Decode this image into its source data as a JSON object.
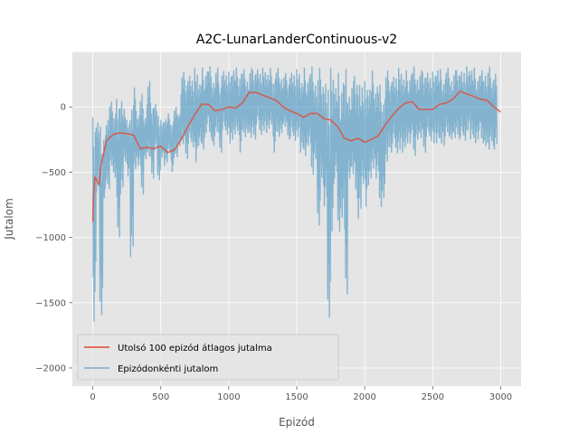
{
  "chart_data": {
    "type": "line",
    "title": "A2C-LunarLanderContinuous-v2",
    "xlabel": "Epizód",
    "ylabel": "Jutalom",
    "xlim": [
      -150,
      3150
    ],
    "ylim": [
      -2140,
      420
    ],
    "x_ticks": [
      0,
      500,
      1000,
      1500,
      2000,
      2500,
      3000
    ],
    "y_ticks": [
      -2000,
      -1500,
      -1000,
      -500,
      0
    ],
    "y_tick_labels": [
      "−2000",
      "−1500",
      "−1000",
      "−500",
      "0"
    ],
    "grid": true,
    "legend_position": "lower-left",
    "series": [
      {
        "name": "Utolsó 100 epizód átlagos jutalma",
        "color": "#E24A33",
        "x": [
          0,
          5,
          15,
          30,
          45,
          60,
          100,
          150,
          200,
          250,
          300,
          350,
          400,
          450,
          500,
          550,
          600,
          650,
          700,
          750,
          800,
          850,
          900,
          950,
          1000,
          1050,
          1100,
          1150,
          1200,
          1250,
          1300,
          1350,
          1400,
          1450,
          1500,
          1550,
          1600,
          1650,
          1700,
          1750,
          1800,
          1850,
          1900,
          1950,
          2000,
          2050,
          2100,
          2150,
          2200,
          2250,
          2300,
          2350,
          2400,
          2450,
          2500,
          2550,
          2600,
          2650,
          2700,
          2750,
          2800,
          2850,
          2900,
          2950,
          3000
        ],
        "values": [
          -880,
          -700,
          -540,
          -560,
          -600,
          -450,
          -260,
          -210,
          -200,
          -205,
          -215,
          -320,
          -310,
          -320,
          -300,
          -350,
          -330,
          -250,
          -150,
          -60,
          20,
          20,
          -30,
          -20,
          0,
          -10,
          30,
          110,
          110,
          90,
          70,
          50,
          0,
          -30,
          -50,
          -80,
          -50,
          -50,
          -90,
          -100,
          -150,
          -240,
          -260,
          -240,
          -270,
          -250,
          -220,
          -140,
          -70,
          -10,
          30,
          40,
          -20,
          -20,
          -20,
          20,
          30,
          60,
          120,
          100,
          80,
          60,
          50,
          0,
          -40
        ]
      },
      {
        "name": "Epizódonkénti jutalom",
        "color": "#348ABD",
        "x": [
          0,
          25,
          50,
          75,
          100,
          125,
          150,
          175,
          200,
          225,
          250,
          275,
          300,
          325,
          350,
          375,
          400,
          425,
          450,
          475,
          500,
          525,
          550,
          575,
          600,
          625,
          650,
          675,
          700,
          725,
          750,
          775,
          800,
          825,
          850,
          875,
          900,
          925,
          950,
          975,
          1000,
          1025,
          1050,
          1075,
          1100,
          1125,
          1150,
          1175,
          1200,
          1225,
          1250,
          1275,
          1300,
          1325,
          1350,
          1375,
          1400,
          1425,
          1450,
          1475,
          1500,
          1525,
          1550,
          1575,
          1600,
          1625,
          1650,
          1675,
          1700,
          1725,
          1750,
          1775,
          1800,
          1825,
          1850,
          1875,
          1900,
          1925,
          1950,
          1975,
          2000,
          2025,
          2050,
          2075,
          2100,
          2125,
          2150,
          2175,
          2200,
          2225,
          2250,
          2275,
          2300,
          2325,
          2350,
          2375,
          2400,
          2425,
          2450,
          2475,
          2500,
          2525,
          2550,
          2575,
          2600,
          2625,
          2650,
          2675,
          2700,
          2725,
          2750,
          2775,
          2800,
          2825,
          2850,
          2875,
          2900,
          2925,
          2950,
          2975,
          3000
        ],
        "max": [
          -80,
          -100,
          -150,
          -200,
          -100,
          100,
          -50,
          100,
          100,
          0,
          -100,
          20,
          150,
          -50,
          100,
          -50,
          200,
          50,
          50,
          -50,
          -100,
          -80,
          -50,
          -100,
          0,
          -30,
          270,
          230,
          280,
          220,
          300,
          190,
          300,
          290,
          310,
          240,
          300,
          200,
          310,
          260,
          270,
          300,
          300,
          280,
          290,
          240,
          300,
          300,
          320,
          270,
          300,
          260,
          300,
          240,
          300,
          260,
          260,
          220,
          300,
          260,
          290,
          200,
          300,
          240,
          310,
          230,
          300,
          240,
          250,
          200,
          300,
          170,
          260,
          220,
          290,
          150,
          200,
          270,
          250,
          180,
          200,
          160,
          280,
          180,
          170,
          100,
          280,
          220,
          270,
          240,
          300,
          230,
          280,
          260,
          310,
          260,
          280,
          290,
          300,
          240,
          270,
          300,
          290,
          230,
          300,
          250,
          280,
          300,
          310,
          280,
          310,
          300,
          300,
          250,
          280,
          300,
          310,
          240,
          300
        ],
        "min": [
          -1700,
          -650,
          -1650,
          -700,
          -650,
          -450,
          -600,
          -1000,
          -700,
          -450,
          -550,
          -1150,
          -500,
          -450,
          -700,
          -400,
          -450,
          -550,
          -350,
          -600,
          -400,
          -450,
          -350,
          -500,
          -400,
          -300,
          -350,
          -400,
          -300,
          -350,
          -450,
          -300,
          -350,
          -200,
          -250,
          -300,
          -250,
          -350,
          -200,
          -250,
          -300,
          -250,
          -200,
          -350,
          -250,
          -200,
          -300,
          -250,
          -150,
          -250,
          -200,
          -200,
          -150,
          -350,
          -250,
          -200,
          -200,
          -250,
          -250,
          -300,
          -250,
          -350,
          -400,
          -300,
          -550,
          -400,
          -1050,
          -600,
          -800,
          -1750,
          -1000,
          -550,
          -1000,
          -850,
          -1500,
          -550,
          -600,
          -700,
          -900,
          -650,
          -800,
          -600,
          -500,
          -550,
          -800,
          -700,
          -500,
          -350,
          -300,
          -400,
          -350,
          -350,
          -300,
          -280,
          -400,
          -250,
          -300,
          -350,
          -250,
          -300,
          -300,
          -280,
          -300,
          -300,
          -250,
          -250,
          -300,
          -250,
          -250,
          -300,
          -200,
          -250,
          -300,
          -250,
          -300,
          -300,
          -400,
          -300,
          -350
        ]
      }
    ]
  }
}
